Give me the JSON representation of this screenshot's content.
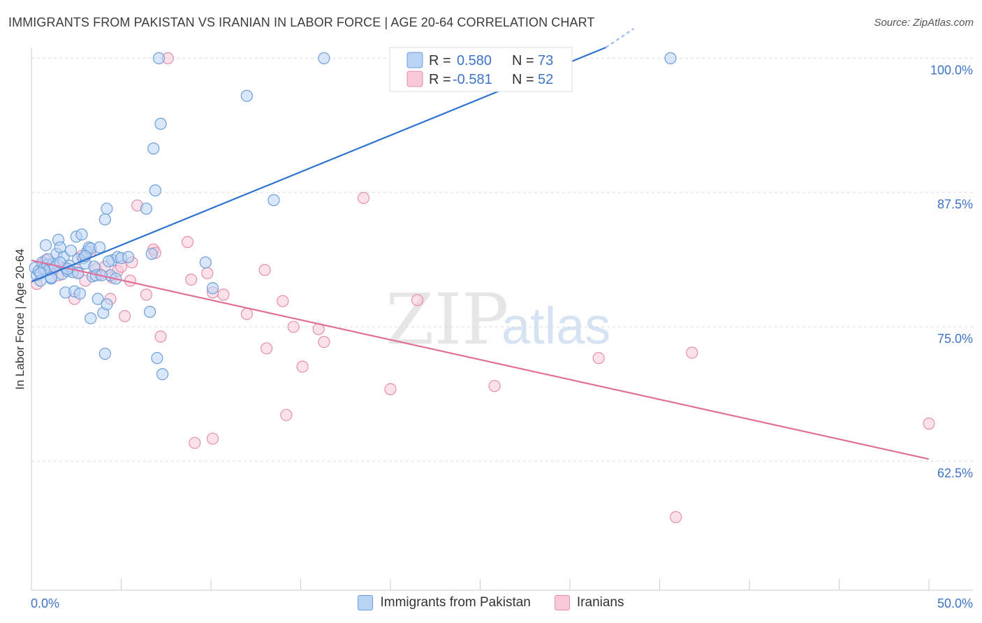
{
  "title": "IMMIGRANTS FROM PAKISTAN VS IRANIAN IN LABOR FORCE | AGE 20-64 CORRELATION CHART",
  "source": "Source: ZipAtlas.com",
  "watermark": {
    "zip": "ZIP",
    "atlas": "atlas"
  },
  "legend": {
    "series1": {
      "r_label": "R =",
      "r_value": "0.580",
      "n_label": "N =",
      "n_value": "73"
    },
    "series2": {
      "r_label": "R =",
      "r_value": "-0.581",
      "n_label": "N =",
      "n_value": "52"
    }
  },
  "colors": {
    "blue_fill": "#b9d3f5",
    "blue_stroke": "#6f9fd8",
    "blue_line": "#2f73d0",
    "pink_fill": "#f8c9d8",
    "pink_stroke": "#e58fae",
    "pink_line": "#e0709a",
    "axis_label": "#3d73c8",
    "grid": "#d9d9d9"
  },
  "chart_data": {
    "type": "scatter",
    "title": "IMMIGRANTS FROM PAKISTAN VS IRANIAN IN LABOR FORCE | AGE 20-64 CORRELATION CHART",
    "xlabel": "",
    "ylabel": "In Labor Force | Age 20-64",
    "xlim": [
      0,
      50
    ],
    "ylim": [
      50.5,
      101
    ],
    "x_tick_labels": [
      "0.0%",
      "50.0%"
    ],
    "y_ticks": [
      62.5,
      75.0,
      87.5,
      100.0
    ],
    "y_tick_labels": [
      "62.5%",
      "75.0%",
      "87.5%",
      "100.0%"
    ],
    "series": [
      {
        "name": "Immigrants from Pakistan",
        "r": 0.58,
        "n": 73,
        "trend": {
          "x": [
            0.0,
            32.0
          ],
          "y": [
            79.2,
            101.0
          ]
        },
        "points": [
          [
            0.2,
            80.5
          ],
          [
            0.3,
            79.8
          ],
          [
            0.4,
            80.2
          ],
          [
            0.5,
            79.3
          ],
          [
            0.6,
            81.0
          ],
          [
            0.7,
            80.4
          ],
          [
            0.8,
            82.6
          ],
          [
            0.9,
            80.8
          ],
          [
            1.0,
            80.3
          ],
          [
            1.1,
            79.5
          ],
          [
            1.2,
            80.9
          ],
          [
            1.3,
            80.6
          ],
          [
            1.4,
            81.8
          ],
          [
            1.5,
            83.1
          ],
          [
            1.6,
            82.4
          ],
          [
            1.7,
            79.9
          ],
          [
            1.8,
            81.5
          ],
          [
            1.9,
            78.2
          ],
          [
            2.0,
            80.2
          ],
          [
            2.1,
            80.7
          ],
          [
            2.2,
            82.1
          ],
          [
            2.3,
            80.1
          ],
          [
            2.4,
            78.3
          ],
          [
            2.5,
            83.4
          ],
          [
            2.6,
            81.3
          ],
          [
            2.7,
            78.1
          ],
          [
            2.8,
            83.6
          ],
          [
            2.9,
            81.4
          ],
          [
            3.0,
            80.9
          ],
          [
            3.1,
            82.0
          ],
          [
            3.2,
            82.4
          ],
          [
            3.3,
            82.3
          ],
          [
            2.6,
            80.0
          ],
          [
            3.4,
            79.7
          ],
          [
            3.5,
            80.6
          ],
          [
            3.6,
            79.8
          ],
          [
            3.7,
            77.6
          ],
          [
            3.3,
            75.8
          ],
          [
            4.0,
            76.3
          ],
          [
            4.2,
            77.1
          ],
          [
            4.4,
            79.8
          ],
          [
            4.5,
            81.2
          ],
          [
            4.7,
            79.5
          ],
          [
            4.8,
            81.5
          ],
          [
            5.0,
            81.4
          ],
          [
            4.1,
            85.0
          ],
          [
            4.3,
            81.1
          ],
          [
            3.9,
            79.8
          ],
          [
            4.2,
            86.0
          ],
          [
            4.1,
            72.5
          ],
          [
            6.4,
            86.0
          ],
          [
            6.9,
            87.7
          ],
          [
            6.8,
            91.6
          ],
          [
            7.2,
            93.9
          ],
          [
            6.6,
            76.4
          ],
          [
            7.0,
            72.1
          ],
          [
            7.3,
            70.6
          ],
          [
            6.7,
            81.8
          ],
          [
            7.1,
            100.0
          ],
          [
            9.7,
            81.0
          ],
          [
            10.1,
            78.6
          ],
          [
            12.0,
            96.5
          ],
          [
            13.5,
            86.8
          ],
          [
            16.3,
            100.0
          ],
          [
            35.6,
            100.0
          ],
          [
            0.9,
            81.3
          ],
          [
            1.6,
            81.0
          ],
          [
            2.0,
            80.4
          ],
          [
            3.8,
            82.4
          ],
          [
            5.4,
            81.5
          ],
          [
            1.1,
            79.6
          ],
          [
            3.0,
            81.6
          ],
          [
            0.5,
            80.0
          ]
        ]
      },
      {
        "name": "Iranians",
        "r": -0.581,
        "n": 52,
        "trend": {
          "x": [
            0.0,
            50.0
          ],
          "y": [
            81.2,
            62.7
          ]
        },
        "points": [
          [
            0.3,
            79.0
          ],
          [
            0.6,
            80.8
          ],
          [
            0.8,
            81.2
          ],
          [
            1.0,
            80.6
          ],
          [
            1.2,
            80.3
          ],
          [
            1.5,
            79.8
          ],
          [
            1.9,
            80.5
          ],
          [
            2.4,
            77.6
          ],
          [
            2.6,
            80.1
          ],
          [
            2.8,
            81.6
          ],
          [
            3.0,
            79.3
          ],
          [
            3.3,
            82.0
          ],
          [
            3.6,
            80.4
          ],
          [
            3.8,
            79.9
          ],
          [
            4.1,
            80.6
          ],
          [
            4.4,
            77.6
          ],
          [
            4.5,
            79.6
          ],
          [
            4.8,
            80.2
          ],
          [
            5.0,
            80.6
          ],
          [
            5.2,
            76.0
          ],
          [
            5.5,
            79.3
          ],
          [
            5.6,
            81.0
          ],
          [
            5.9,
            86.3
          ],
          [
            6.4,
            78.0
          ],
          [
            6.8,
            82.2
          ],
          [
            6.9,
            81.9
          ],
          [
            7.2,
            74.1
          ],
          [
            7.6,
            100.0
          ],
          [
            8.7,
            82.9
          ],
          [
            8.9,
            79.4
          ],
          [
            9.8,
            80.0
          ],
          [
            10.1,
            78.2
          ],
          [
            10.7,
            78.0
          ],
          [
            12.0,
            76.2
          ],
          [
            13.0,
            80.3
          ],
          [
            13.1,
            73.0
          ],
          [
            14.0,
            77.4
          ],
          [
            14.2,
            66.8
          ],
          [
            14.6,
            75.0
          ],
          [
            15.1,
            71.3
          ],
          [
            16.0,
            74.8
          ],
          [
            16.3,
            73.6
          ],
          [
            18.5,
            87.0
          ],
          [
            20.0,
            69.2
          ],
          [
            21.5,
            77.5
          ],
          [
            25.8,
            69.5
          ],
          [
            31.6,
            72.1
          ],
          [
            36.8,
            72.6
          ],
          [
            35.9,
            57.3
          ],
          [
            50.0,
            66.0
          ],
          [
            9.1,
            64.2
          ],
          [
            10.1,
            64.6
          ]
        ]
      }
    ]
  },
  "axis_labels": {
    "y_title": "In Labor Force | Age 20-64",
    "x_min": "0.0%",
    "x_max": "50.0%"
  }
}
